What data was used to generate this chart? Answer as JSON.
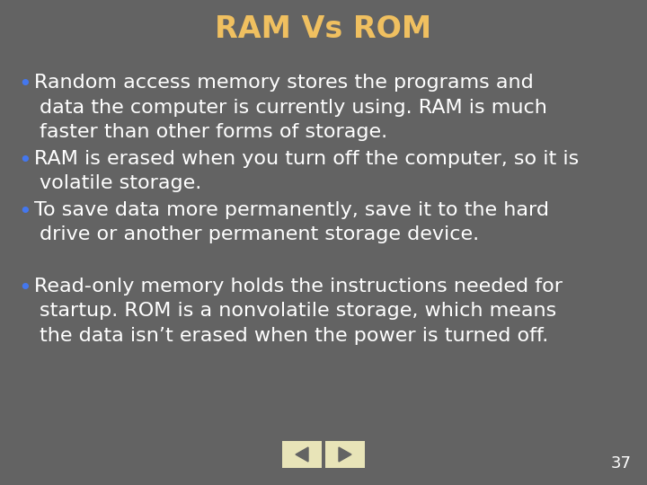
{
  "title": "RAM Vs ROM",
  "title_color": "#F0C060",
  "title_fontsize": 24,
  "background_color": "#636363",
  "text_color": "#FFFFFF",
  "bullet_color": "#4477EE",
  "bullet1_lines": [
    "Random access memory stores the programs and",
    "data the computer is currently using. RAM is much",
    "faster than other forms of storage."
  ],
  "bullet2_lines": [
    "RAM is erased when you turn off the computer, so it is",
    "volatile storage."
  ],
  "bullet3_lines": [
    "To save data more permanently, save it to the hard",
    "drive or another permanent storage device."
  ],
  "bullet4_lines": [
    "Read-only memory holds the instructions needed for",
    "startup. ROM is a nonvolatile storage, which means",
    "the data isn’t erased when the power is turned off."
  ],
  "page_number": "37",
  "text_fontsize": 16,
  "nav_box_color": "#E8E4B8",
  "nav_arrow_color": "#636363"
}
